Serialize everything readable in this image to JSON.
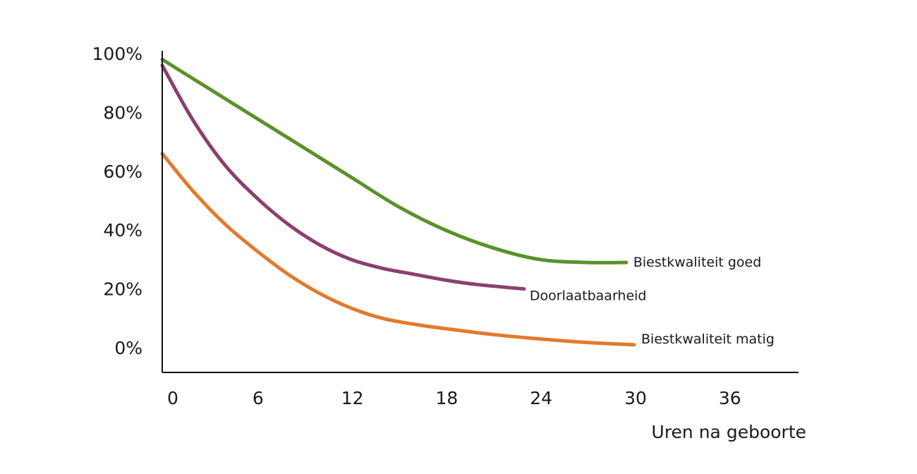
{
  "chart_data": {
    "type": "line",
    "title": "",
    "xlabel": "Uren na geboorte",
    "ylabel": "",
    "xlim": [
      0,
      40
    ],
    "ylim": [
      0,
      100
    ],
    "x_ticks": [
      {
        "value": 0,
        "label": "0"
      },
      {
        "value": 6,
        "label": "6"
      },
      {
        "value": 12,
        "label": "12"
      },
      {
        "value": 18,
        "label": "18"
      },
      {
        "value": 24,
        "label": "24"
      },
      {
        "value": 30,
        "label": "30"
      },
      {
        "value": 36,
        "label": "36"
      }
    ],
    "y_ticks": [
      {
        "value": 0,
        "label": "0%"
      },
      {
        "value": 20,
        "label": "20%"
      },
      {
        "value": 40,
        "label": "40%"
      },
      {
        "value": 60,
        "label": "60%"
      },
      {
        "value": 80,
        "label": "80%"
      },
      {
        "value": 100,
        "label": "100%"
      }
    ],
    "grid": false,
    "legend": "inline labels at line ends",
    "series": [
      {
        "name": "Biestkwaliteit goed",
        "color": "#5a9229",
        "x": [
          0,
          3,
          6,
          9,
          12,
          15,
          18,
          21,
          24,
          27,
          29.5
        ],
        "y": [
          98,
          88,
          78,
          68,
          58,
          48,
          40,
          34,
          30,
          29,
          29
        ]
      },
      {
        "name": "Doorlaatbaarheid",
        "color": "#8c3f6e",
        "x": [
          0,
          2,
          4,
          6,
          8,
          10,
          12,
          14,
          16,
          18,
          20,
          23
        ],
        "y": [
          96,
          77,
          62,
          51,
          42,
          35,
          30,
          27,
          25,
          23,
          21.5,
          20
        ]
      },
      {
        "name": "Biestkwaliteit matig",
        "color": "#e27a2d",
        "x": [
          0,
          2,
          4,
          6,
          8,
          10,
          12,
          14,
          16,
          18,
          21,
          24,
          27,
          30
        ],
        "y": [
          66,
          53,
          42,
          33,
          25,
          18.5,
          13.5,
          10,
          8,
          6.5,
          4.5,
          3,
          1.8,
          1
        ]
      }
    ]
  }
}
